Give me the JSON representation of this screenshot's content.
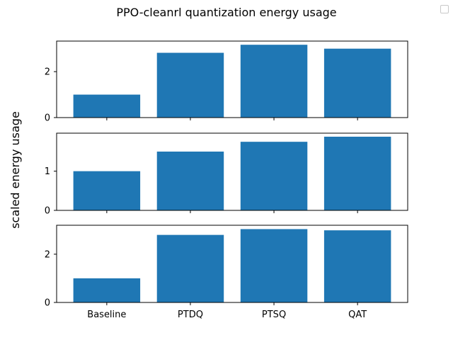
{
  "suptitle": "PPO-cleanrl quantization energy usage",
  "ylabel": "scaled energy usage",
  "chart_data": [
    {
      "type": "bar",
      "categories": [
        "Baseline",
        "PTDQ",
        "PTSQ",
        "QAT"
      ],
      "values": [
        1.0,
        2.82,
        3.17,
        3.0
      ],
      "ylim": [
        0,
        3.33
      ],
      "yticks": [
        0,
        2
      ],
      "color": "#1f77b4",
      "show_xticklabels": false
    },
    {
      "type": "bar",
      "categories": [
        "Baseline",
        "PTDQ",
        "PTSQ",
        "QAT"
      ],
      "values": [
        1.0,
        1.5,
        1.75,
        1.88
      ],
      "ylim": [
        0,
        1.97
      ],
      "yticks": [
        0,
        1
      ],
      "color": "#1f77b4",
      "show_xticklabels": false
    },
    {
      "type": "bar",
      "categories": [
        "Baseline",
        "PTDQ",
        "PTSQ",
        "QAT"
      ],
      "values": [
        1.0,
        2.8,
        3.04,
        2.99
      ],
      "ylim": [
        0,
        3.2
      ],
      "yticks": [
        0,
        2
      ],
      "color": "#1f77b4",
      "show_xticklabels": true
    }
  ]
}
